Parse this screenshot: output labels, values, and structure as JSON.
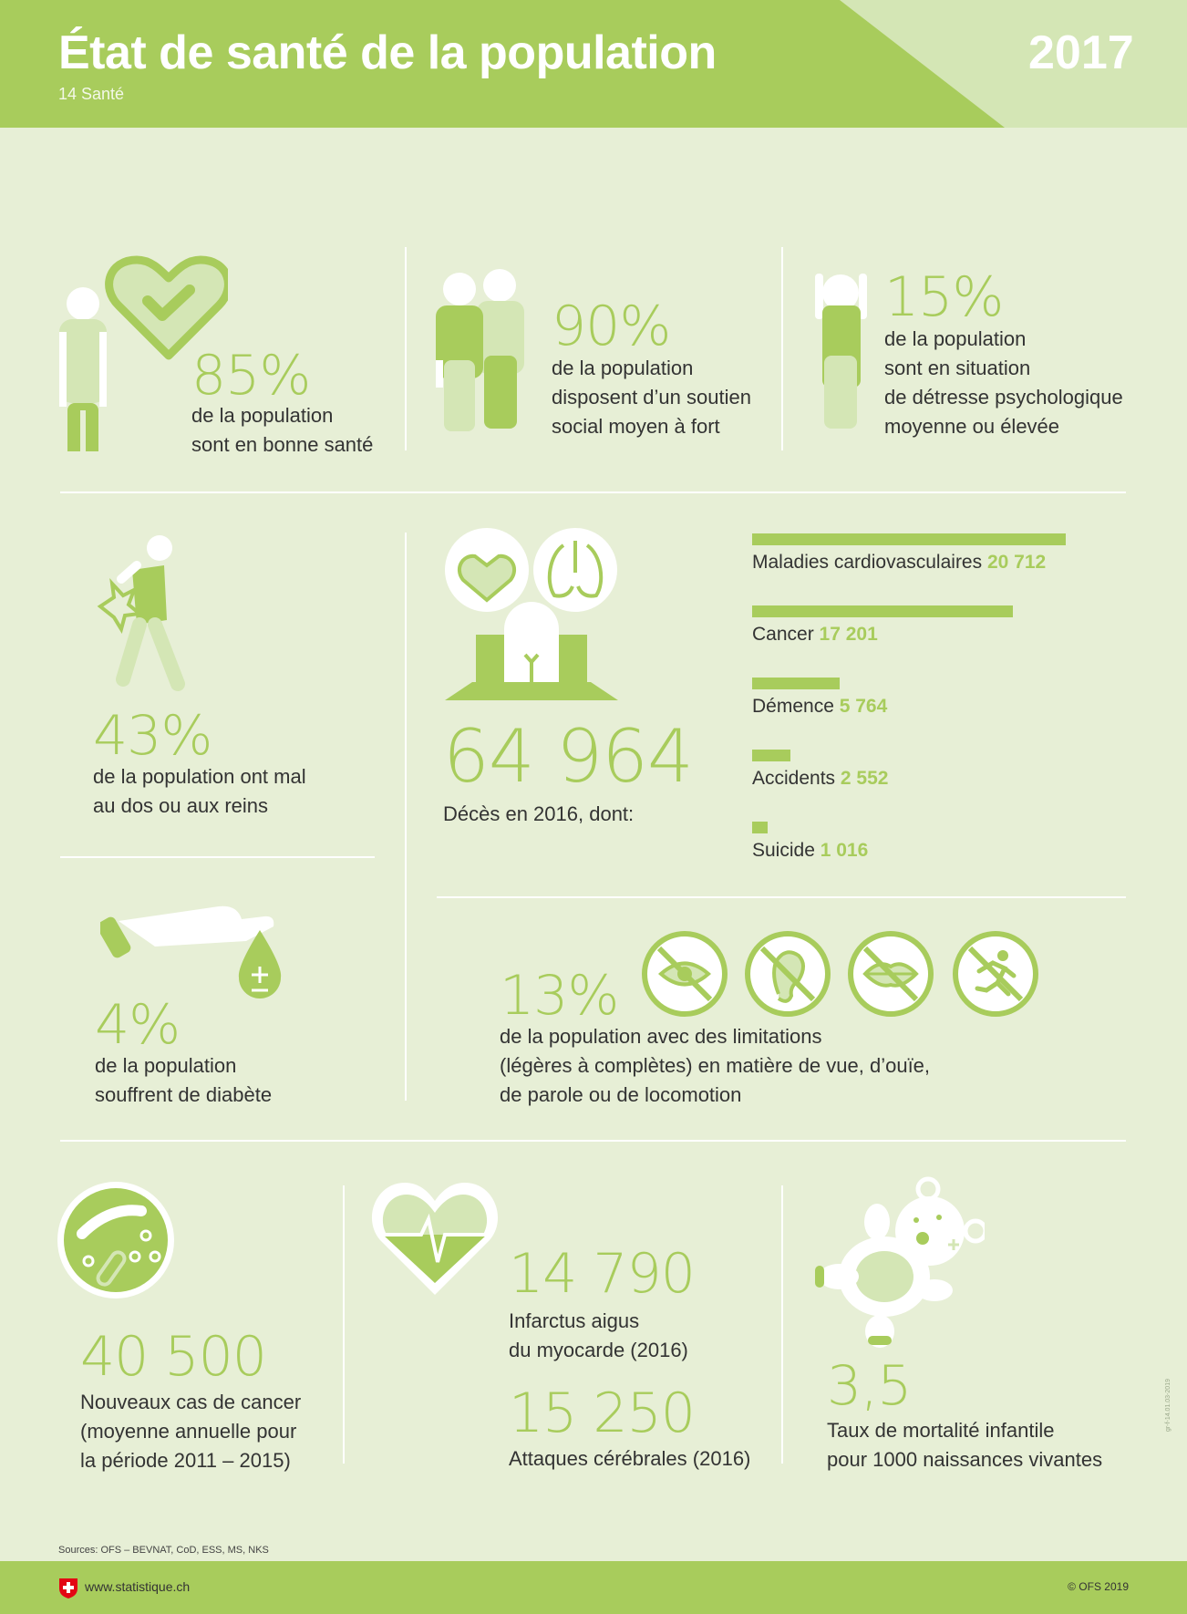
{
  "header": {
    "title": "État de santé de la population",
    "subtitle": "14 Santé",
    "year": "2017"
  },
  "colors": {
    "accent": "#a8cc5c",
    "light_accent": "#d4e6b5",
    "background": "#e7efd6"
  },
  "stats": {
    "good_health": {
      "value": "85%",
      "line1": "de la population",
      "line2": "sont en bonne santé",
      "icon": "heart-check-icon"
    },
    "social_support": {
      "value": "90%",
      "line1": "de la population",
      "line2": "disposent d’un soutien",
      "line3": "social moyen à fort",
      "icon": "two-people-icon"
    },
    "distress": {
      "value": "15%",
      "line1": "de la population",
      "line2": "sont en situation",
      "line3": "de détresse psychologique",
      "line4": "moyenne ou élevée",
      "icon": "person-holding-head-icon"
    },
    "back_pain": {
      "value": "43%",
      "line1": "de la population ont mal",
      "line2": "au dos ou aux reins",
      "icon": "back-pain-icon"
    },
    "diabetes": {
      "value": "4%",
      "line1": "de la population",
      "line2": "souffrent de diabète",
      "icon": "hand-drop-icon"
    },
    "deaths": {
      "value": "64 964",
      "label": "Décès en 2016, dont:",
      "icon": "grave-icon"
    },
    "limitations": {
      "value": "13%",
      "line1": "de la population avec des limitations",
      "line2": "(légères à complètes) en matière de vue, d’ouïe,",
      "line3": "de parole ou de locomotion",
      "icons": [
        "no-sight-icon",
        "no-hearing-icon",
        "no-speech-icon",
        "no-walking-icon"
      ]
    },
    "cancer": {
      "value": "40 500",
      "line1": "Nouveaux cas de cancer",
      "line2": "(moyenne annuelle pour",
      "line3": "la période 2011 – 2015)",
      "icon": "cell-icon"
    },
    "infarct": {
      "value": "14 790",
      "line1": "Infarctus aigus",
      "line2": "du myocarde (2016)",
      "icon": "heart-pulse-icon"
    },
    "stroke": {
      "value": "15 250",
      "line1": "Attaques cérébrales (2016)"
    },
    "infant": {
      "value": "3,5",
      "line1": "Taux de mortalité infantile",
      "line2": "pour 1000 naissances vivantes",
      "icon": "teddy-bear-icon"
    }
  },
  "chart_data": {
    "type": "bar",
    "categories": [
      "Maladies cardiovasculaires",
      "Cancer",
      "Démence",
      "Accidents",
      "Suicide"
    ],
    "values": [
      20712,
      17201,
      5764,
      2552,
      1016
    ],
    "value_labels": [
      "20 712",
      "17 201",
      "5 764",
      "2 552",
      "1 016"
    ]
  },
  "footer": {
    "sources": "Sources: OFS – BEVNAT, CoD, ESS, MS, NKS",
    "url": "www.statistique.ch",
    "copyright": "© OFS 2019",
    "code": "gr-f-14.01.03-2019"
  }
}
